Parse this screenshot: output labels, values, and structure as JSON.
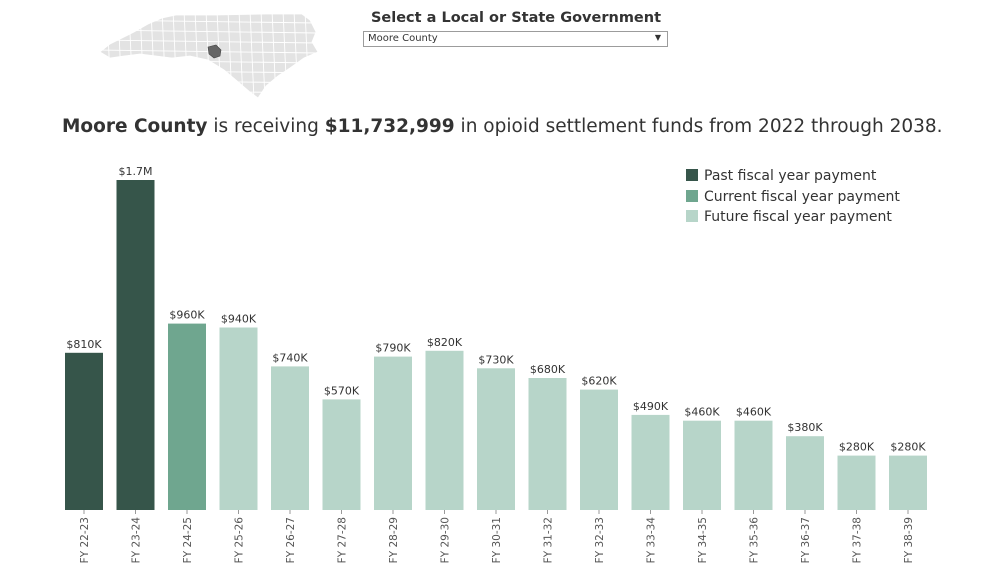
{
  "selector": {
    "title": "Select a Local or State Government",
    "selected": "Moore County"
  },
  "headline": {
    "entity": "Moore County",
    "middle": " is receiving ",
    "amount": "$11,732,999",
    "rest": " in opioid settlement funds from 2022 through 2038."
  },
  "colors": {
    "past": "#36554a",
    "current": "#6fa68f",
    "future": "#b7d5c9",
    "map_fill": "#e3e3e3",
    "map_border": "#ffffff",
    "map_highlight": "#666666",
    "text": "#333333",
    "tick": "#9a9a9a"
  },
  "legend": [
    {
      "label": "Past fiscal year payment",
      "status": "past"
    },
    {
      "label": "Current fiscal year payment",
      "status": "current"
    },
    {
      "label": "Future fiscal year payment",
      "status": "future"
    }
  ],
  "chart_data": {
    "type": "bar",
    "title": "",
    "xlabel": "",
    "ylabel": "",
    "ylim": [
      0,
      1700000
    ],
    "grid": false,
    "legend_position": "top-right",
    "categories": [
      "FY 22-23",
      "FY 23-24",
      "FY 24-25",
      "FY 25-26",
      "FY 26-27",
      "FY 27-28",
      "FY 28-29",
      "FY 29-30",
      "FY 30-31",
      "FY 31-32",
      "FY 32-33",
      "FY 33-34",
      "FY 34-35",
      "FY 35-36",
      "FY 36-37",
      "FY 37-38",
      "FY 38-39"
    ],
    "values": [
      810000,
      1700000,
      960000,
      940000,
      740000,
      570000,
      790000,
      820000,
      730000,
      680000,
      620000,
      490000,
      460000,
      460000,
      380000,
      280000,
      280000
    ],
    "labels": [
      "$810K",
      "$1.7M",
      "$960K",
      "$940K",
      "$740K",
      "$570K",
      "$790K",
      "$820K",
      "$730K",
      "$680K",
      "$620K",
      "$490K",
      "$460K",
      "$460K",
      "$380K",
      "$280K",
      "$280K"
    ],
    "status": [
      "past",
      "past",
      "current",
      "future",
      "future",
      "future",
      "future",
      "future",
      "future",
      "future",
      "future",
      "future",
      "future",
      "future",
      "future",
      "future",
      "future"
    ]
  }
}
